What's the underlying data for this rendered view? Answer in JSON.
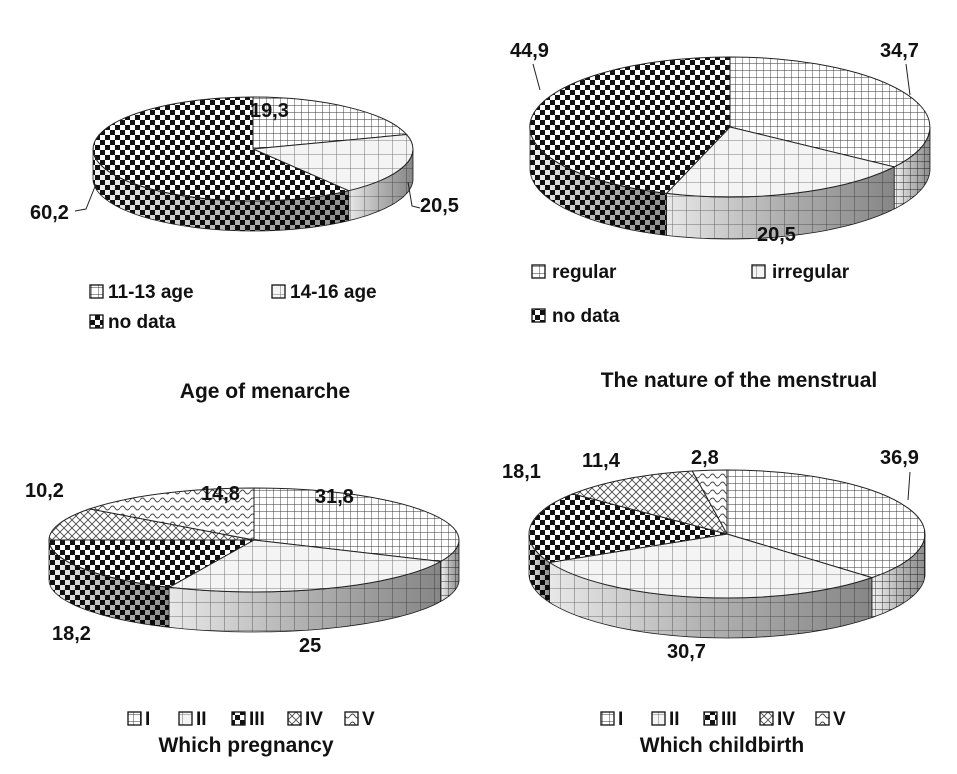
{
  "chart_data": [
    {
      "type": "pie",
      "title": "Age of menarche",
      "categories": [
        "11-13 age",
        "14-16 age",
        "no data"
      ],
      "values": [
        20.5,
        19.3,
        60.2
      ],
      "value_labels": [
        "20,5",
        "19,3",
        "60,2"
      ],
      "legend_position": "bottom",
      "style": "3d"
    },
    {
      "type": "pie",
      "title": "The nature of the menstrual",
      "categories": [
        "regular",
        "irregular",
        "no data"
      ],
      "values": [
        34.7,
        20.5,
        44.9
      ],
      "value_labels": [
        "34,7",
        "20,5",
        "44,9"
      ],
      "legend_position": "bottom",
      "style": "3d"
    },
    {
      "type": "pie",
      "title": "Which pregnancy",
      "categories": [
        "I",
        "II",
        "III",
        "IV",
        "V"
      ],
      "values": [
        31.8,
        25,
        18.2,
        10.2,
        14.8
      ],
      "value_labels": [
        "31,8",
        "25",
        "18,2",
        "10,2",
        "14,8"
      ],
      "legend_position": "bottom",
      "style": "3d"
    },
    {
      "type": "pie",
      "title": "Which childbirth",
      "categories": [
        "I",
        "II",
        "III",
        "IV",
        "V"
      ],
      "values": [
        36.9,
        30.7,
        18.1,
        11.4,
        2.8
      ],
      "value_labels": [
        "36,9",
        "30,7",
        "18,1",
        "11,4",
        "2,8"
      ],
      "legend_position": "bottom",
      "style": "3d"
    }
  ]
}
